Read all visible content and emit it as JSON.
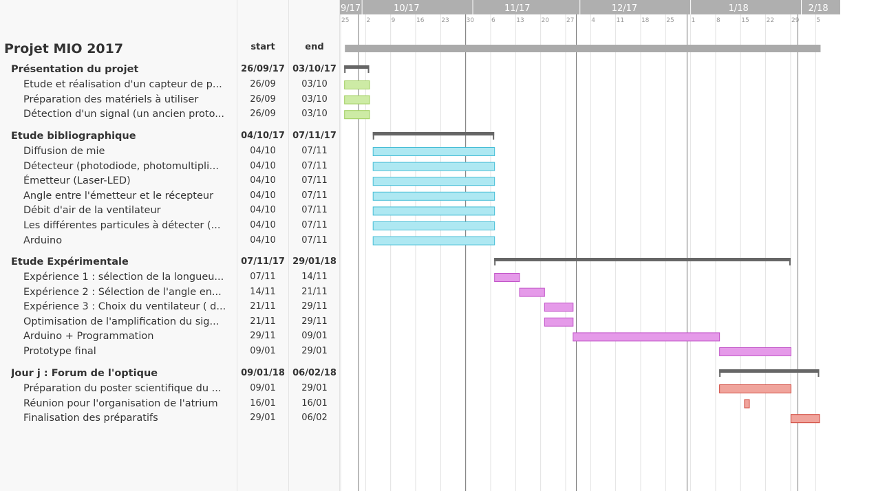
{
  "colors": {
    "header_bar": "#afafaf",
    "project_bar": "#aaaaaa",
    "group_bar": "#666666",
    "group1_fill": "#cdeba5",
    "group1_stroke": "#9fce5e",
    "group2_fill": "#aee8f2",
    "group2_stroke": "#45bdd6",
    "group3_fill": "#e59ae9",
    "group3_stroke": "#c255c8",
    "group4_fill": "#f0a49c",
    "group4_stroke": "#d0453a"
  },
  "timeline": {
    "months": [
      {
        "label": "9/17",
        "date": "2017-09-25"
      },
      {
        "label": "10/17",
        "date": "2017-10-01"
      },
      {
        "label": "11/17",
        "date": "2017-11-01"
      },
      {
        "label": "12/17",
        "date": "2017-12-01"
      },
      {
        "label": "1/18",
        "date": "2018-01-01"
      },
      {
        "label": "2/18",
        "date": "2018-02-01"
      }
    ],
    "weeks": [
      {
        "label": "25",
        "date": "2017-09-25"
      },
      {
        "label": "2",
        "date": "2017-10-02"
      },
      {
        "label": "9",
        "date": "2017-10-09"
      },
      {
        "label": "16",
        "date": "2017-10-16"
      },
      {
        "label": "23",
        "date": "2017-10-23"
      },
      {
        "label": "30",
        "date": "2017-10-30"
      },
      {
        "label": "6",
        "date": "2017-11-06"
      },
      {
        "label": "13",
        "date": "2017-11-13"
      },
      {
        "label": "20",
        "date": "2017-11-20"
      },
      {
        "label": "27",
        "date": "2017-11-27"
      },
      {
        "label": "4",
        "date": "2017-12-04"
      },
      {
        "label": "11",
        "date": "2017-12-11"
      },
      {
        "label": "18",
        "date": "2017-12-18"
      },
      {
        "label": "25",
        "date": "2017-12-25"
      },
      {
        "label": "1",
        "date": "2018-01-01"
      },
      {
        "label": "8",
        "date": "2018-01-08"
      },
      {
        "label": "15",
        "date": "2018-01-15"
      },
      {
        "label": "22",
        "date": "2018-01-22"
      },
      {
        "label": "29",
        "date": "2018-01-29"
      },
      {
        "label": "5",
        "date": "2018-02-05"
      }
    ]
  },
  "columns": {
    "start": "start",
    "end": "end"
  },
  "project": {
    "name": "Projet MIO 2017",
    "start": "2017-09-26",
    "end": "2018-02-06"
  },
  "groups": [
    {
      "name": "Présentation du projet",
      "start_label": "26/09/17",
      "end_label": "03/10/17",
      "start": "2017-09-26",
      "end": "2017-10-03",
      "color": "group1",
      "tasks": [
        {
          "name": "Etude et réalisation d'un capteur de p...",
          "start_label": "26/09",
          "end_label": "03/10",
          "start": "2017-09-26",
          "end": "2017-10-03"
        },
        {
          "name": "Préparation des matériels à utiliser",
          "start_label": "26/09",
          "end_label": "03/10",
          "start": "2017-09-26",
          "end": "2017-10-03"
        },
        {
          "name": "Détection d'un signal (un ancien proto...",
          "start_label": "26/09",
          "end_label": "03/10",
          "start": "2017-09-26",
          "end": "2017-10-03"
        }
      ]
    },
    {
      "name": "Etude bibliographique",
      "start_label": "04/10/17",
      "end_label": "07/11/17",
      "start": "2017-10-04",
      "end": "2017-11-07",
      "color": "group2",
      "tasks": [
        {
          "name": "Diffusion de mie",
          "start_label": "04/10",
          "end_label": "07/11",
          "start": "2017-10-04",
          "end": "2017-11-07"
        },
        {
          "name": "Détecteur (photodiode, photomultipli...",
          "start_label": "04/10",
          "end_label": "07/11",
          "start": "2017-10-04",
          "end": "2017-11-07"
        },
        {
          "name": "Émetteur (Laser-LED)",
          "start_label": "04/10",
          "end_label": "07/11",
          "start": "2017-10-04",
          "end": "2017-11-07"
        },
        {
          "name": "Angle entre l'émetteur et le récepteur",
          "start_label": "04/10",
          "end_label": "07/11",
          "start": "2017-10-04",
          "end": "2017-11-07"
        },
        {
          "name": "Débit d'air de la ventilateur",
          "start_label": "04/10",
          "end_label": "07/11",
          "start": "2017-10-04",
          "end": "2017-11-07"
        },
        {
          "name": "Les différentes particules à détecter (...",
          "start_label": "04/10",
          "end_label": "07/11",
          "start": "2017-10-04",
          "end": "2017-11-07"
        },
        {
          "name": "Arduino",
          "start_label": "04/10",
          "end_label": "07/11",
          "start": "2017-10-04",
          "end": "2017-11-07"
        }
      ]
    },
    {
      "name": "Etude Expérimentale",
      "start_label": "07/11/17",
      "end_label": "29/01/18",
      "start": "2017-11-07",
      "end": "2018-01-29",
      "color": "group3",
      "tasks": [
        {
          "name": "Expérience 1 : sélection de la longueu...",
          "start_label": "07/11",
          "end_label": "14/11",
          "start": "2017-11-07",
          "end": "2017-11-14"
        },
        {
          "name": "Expérience 2 : Sélection de l'angle en...",
          "start_label": "14/11",
          "end_label": "21/11",
          "start": "2017-11-14",
          "end": "2017-11-21"
        },
        {
          "name": "Expérience 3 : Choix du ventilateur ( d...",
          "start_label": "21/11",
          "end_label": "29/11",
          "start": "2017-11-21",
          "end": "2017-11-29"
        },
        {
          "name": "Optimisation de l'amplification du sig...",
          "start_label": "21/11",
          "end_label": "29/11",
          "start": "2017-11-21",
          "end": "2017-11-29"
        },
        {
          "name": "Arduino + Programmation",
          "start_label": "29/11",
          "end_label": "09/01",
          "start": "2017-11-29",
          "end": "2018-01-09"
        },
        {
          "name": "Prototype final",
          "start_label": "09/01",
          "end_label": "29/01",
          "start": "2018-01-09",
          "end": "2018-01-29"
        }
      ]
    },
    {
      "name": "Jour j : Forum de l'optique",
      "start_label": "09/01/18",
      "end_label": "06/02/18",
      "start": "2018-01-09",
      "end": "2018-02-06",
      "color": "group4",
      "tasks": [
        {
          "name": "Préparation du poster scientifique du ...",
          "start_label": "09/01",
          "end_label": "29/01",
          "start": "2018-01-09",
          "end": "2018-01-29"
        },
        {
          "name": "Réunion pour l'organisation de l'atrium",
          "start_label": "16/01",
          "end_label": "16/01",
          "start": "2018-01-16",
          "end": "2018-01-16"
        },
        {
          "name": "Finalisation des préparatifs",
          "start_label": "29/01",
          "end_label": "06/02",
          "start": "2018-01-29",
          "end": "2018-02-06"
        }
      ]
    }
  ]
}
